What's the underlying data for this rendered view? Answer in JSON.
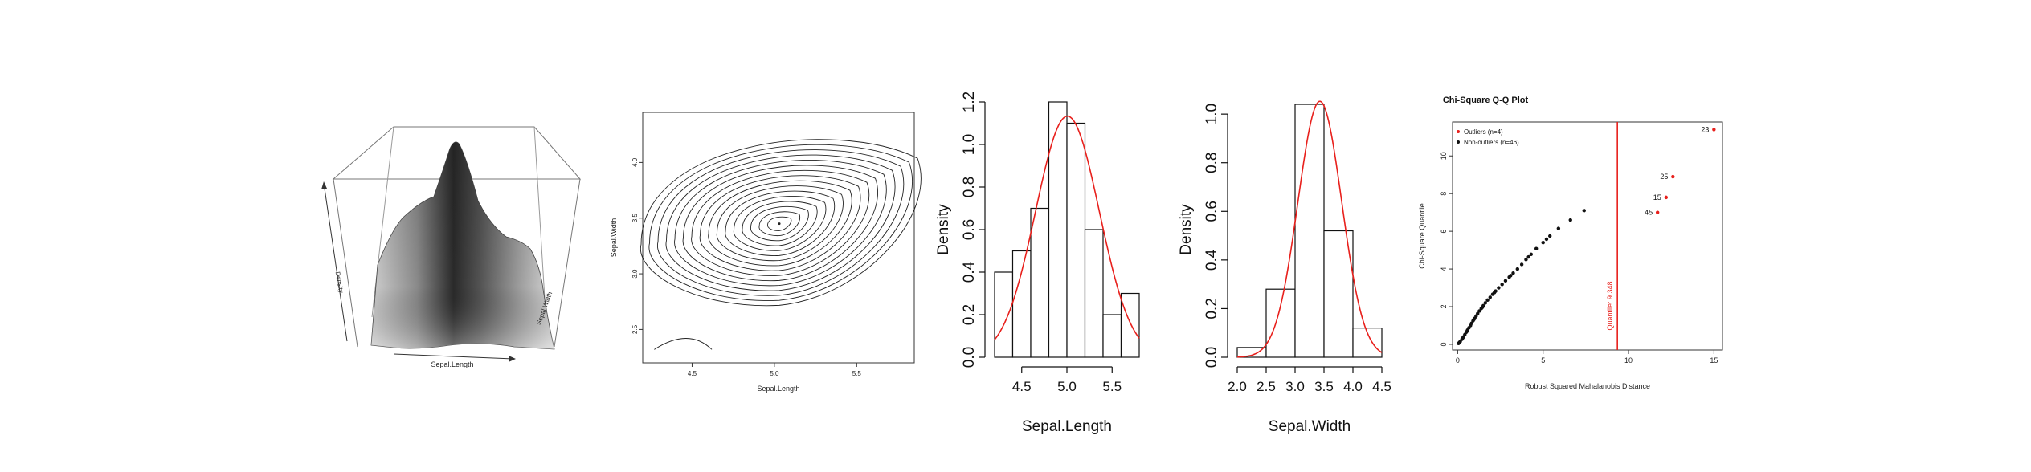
{
  "chart_data": [
    {
      "type": "surface",
      "xlabel": "Sepal.Length",
      "ylabel": "Sepal.Width",
      "zlabel": "Density"
    },
    {
      "type": "contour",
      "xlabel": "Sepal.Length",
      "ylabel": "Sepal.Width",
      "xticks": [
        4.5,
        5.0,
        5.5
      ],
      "yticks": [
        2.5,
        3.0,
        3.5,
        4.0
      ],
      "xlim": [
        4.2,
        5.85
      ],
      "ylim": [
        2.2,
        4.45
      ],
      "peak": {
        "x": 5.03,
        "y": 3.45
      }
    },
    {
      "type": "histogram",
      "xlabel": "Sepal.Length",
      "ylabel": "Density",
      "bins": [
        4.2,
        4.4,
        4.6,
        4.8,
        5.0,
        5.2,
        5.4,
        5.6,
        5.8
      ],
      "values": [
        0.4,
        0.5,
        0.7,
        1.2,
        1.1,
        0.6,
        0.2,
        0.3
      ],
      "xticks": [
        4.5,
        5.0,
        5.5
      ],
      "yticks": [
        0.0,
        0.2,
        0.4,
        0.6,
        0.8,
        1.0,
        1.2
      ],
      "ylim": [
        0,
        1.2
      ],
      "normal_curve": {
        "mean": 5.006,
        "sd": 0.352,
        "color": "#e8201c"
      }
    },
    {
      "type": "histogram",
      "xlabel": "Sepal.Width",
      "ylabel": "Density",
      "bins": [
        2.0,
        2.5,
        3.0,
        3.5,
        4.0,
        4.5
      ],
      "values": [
        0.04,
        0.28,
        1.04,
        0.52,
        0.12
      ],
      "xticks": [
        2.0,
        2.5,
        3.0,
        3.5,
        4.0,
        4.5
      ],
      "yticks": [
        0.0,
        0.2,
        0.4,
        0.6,
        0.8,
        1.0
      ],
      "ylim": [
        0,
        1.05
      ],
      "normal_curve": {
        "mean": 3.428,
        "sd": 0.379,
        "color": "#e8201c"
      }
    },
    {
      "type": "scatter",
      "title": "Chi-Square Q-Q Plot",
      "xlabel": "Robust Squared Mahalanobis Distance",
      "ylabel": "Chi-Square Quantile",
      "xticks": [
        0,
        5,
        10,
        15
      ],
      "yticks": [
        0,
        2,
        4,
        6,
        8,
        10
      ],
      "xlim": [
        -0.3,
        15.5
      ],
      "ylim": [
        -0.3,
        11.8
      ],
      "legend": [
        {
          "label": "Outliers (n=4)",
          "color": "#e8201c"
        },
        {
          "label": "Non-outliers (n=46)",
          "color": "#111111"
        }
      ],
      "cutoff": {
        "value": 9.348,
        "label": "Quantile: 9.348",
        "color": "#e8201c"
      },
      "outliers": [
        {
          "label": "23",
          "x": 15.0,
          "y": 11.4
        },
        {
          "label": "25",
          "x": 12.6,
          "y": 8.9
        },
        {
          "label": "15",
          "x": 12.2,
          "y": 7.8
        },
        {
          "label": "45",
          "x": 11.7,
          "y": 7.0
        }
      ],
      "non_outliers": [
        {
          "x": 0.05,
          "y": 0.05
        },
        {
          "x": 0.15,
          "y": 0.15
        },
        {
          "x": 0.25,
          "y": 0.27
        },
        {
          "x": 0.35,
          "y": 0.4
        },
        {
          "x": 0.42,
          "y": 0.52
        },
        {
          "x": 0.5,
          "y": 0.64
        },
        {
          "x": 0.58,
          "y": 0.76
        },
        {
          "x": 0.66,
          "y": 0.88
        },
        {
          "x": 0.75,
          "y": 1.0
        },
        {
          "x": 0.82,
          "y": 1.12
        },
        {
          "x": 0.9,
          "y": 1.25
        },
        {
          "x": 1.0,
          "y": 1.38
        },
        {
          "x": 1.08,
          "y": 1.5
        },
        {
          "x": 1.17,
          "y": 1.63
        },
        {
          "x": 1.27,
          "y": 1.77
        },
        {
          "x": 1.38,
          "y": 1.9
        },
        {
          "x": 1.5,
          "y": 2.05
        },
        {
          "x": 1.62,
          "y": 2.2
        },
        {
          "x": 1.75,
          "y": 2.35
        },
        {
          "x": 1.9,
          "y": 2.5
        },
        {
          "x": 2.05,
          "y": 2.66
        },
        {
          "x": 2.22,
          "y": 2.83
        },
        {
          "x": 2.4,
          "y": 3.0
        },
        {
          "x": 2.6,
          "y": 3.18
        },
        {
          "x": 2.8,
          "y": 3.37
        },
        {
          "x": 3.02,
          "y": 3.57
        },
        {
          "x": 3.25,
          "y": 3.78
        },
        {
          "x": 3.5,
          "y": 4.0
        },
        {
          "x": 3.75,
          "y": 4.24
        },
        {
          "x": 4.0,
          "y": 4.5
        },
        {
          "x": 4.3,
          "y": 4.78
        },
        {
          "x": 4.6,
          "y": 5.08
        },
        {
          "x": 5.0,
          "y": 5.4
        },
        {
          "x": 5.4,
          "y": 5.75
        },
        {
          "x": 5.9,
          "y": 6.15
        },
        {
          "x": 6.6,
          "y": 6.6
        },
        {
          "x": 7.4,
          "y": 7.1
        },
        {
          "x": 0.1,
          "y": 0.1
        },
        {
          "x": 0.3,
          "y": 0.34
        },
        {
          "x": 0.55,
          "y": 0.7
        },
        {
          "x": 0.95,
          "y": 1.32
        },
        {
          "x": 1.45,
          "y": 1.97
        },
        {
          "x": 2.15,
          "y": 2.75
        },
        {
          "x": 3.1,
          "y": 3.65
        },
        {
          "x": 4.15,
          "y": 4.64
        },
        {
          "x": 5.2,
          "y": 5.58
        }
      ]
    }
  ]
}
